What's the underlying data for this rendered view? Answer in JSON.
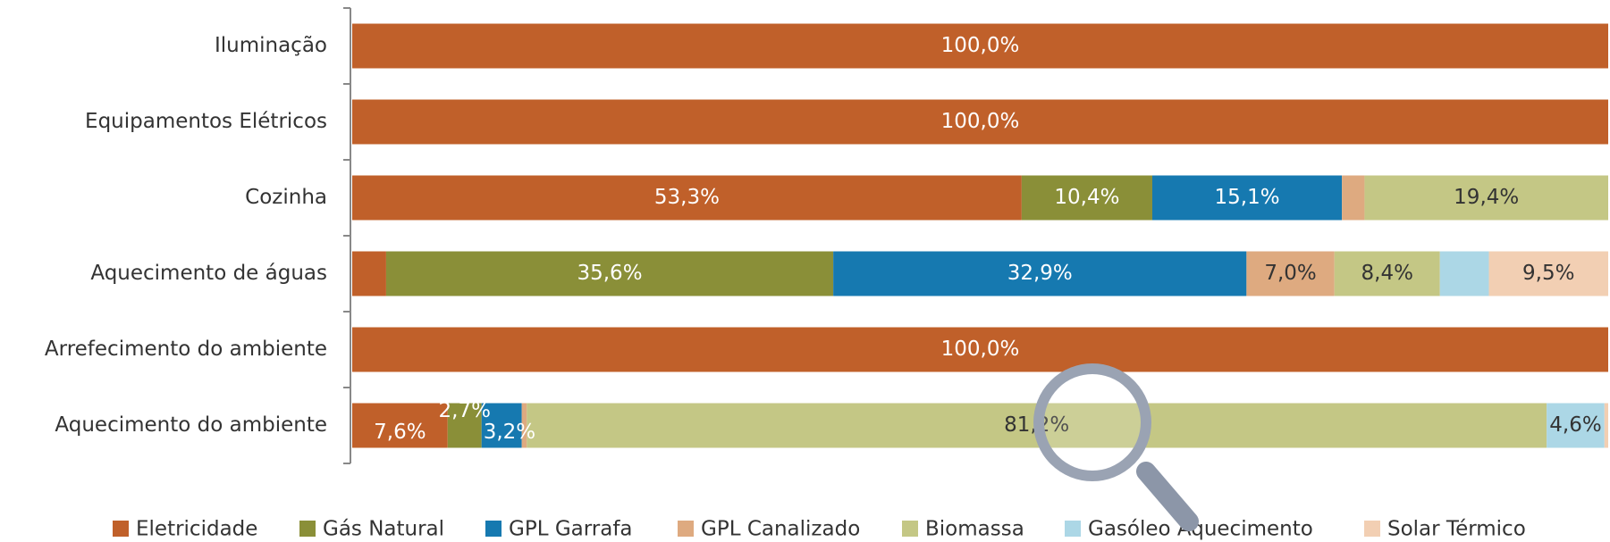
{
  "chart_data": {
    "type": "stacked_bar_horizontal",
    "categories": [
      "Iluminação",
      "Equipamentos Elétricos",
      "Cozinha",
      "Aquecimento de águas",
      "Arrefecimento do ambiente",
      "Aquecimento do ambiente"
    ],
    "xlim": [
      0,
      100
    ],
    "legend": "bottom",
    "series": [
      {
        "name": "Eletricidade",
        "color": "#c0602a",
        "label_color": "#ffffff",
        "values": [
          100,
          100,
          53.3,
          2.7,
          100,
          7.6
        ],
        "value_labels": [
          "100,0%",
          "100,0%",
          "53,3%",
          null,
          "100,0%",
          "7,6%"
        ]
      },
      {
        "name": "Gás Natural",
        "color": "#8a8f38",
        "label_color": "#ffffff",
        "values": [
          0,
          0,
          10.4,
          35.6,
          0,
          2.7
        ],
        "value_labels": [
          null,
          null,
          "10,4%",
          "35,6%",
          null,
          "2,7%"
        ]
      },
      {
        "name": "GPL Garrafa",
        "color": "#1679b0",
        "label_color": "#ffffff",
        "values": [
          0,
          0,
          15.1,
          32.9,
          0,
          3.2
        ],
        "value_labels": [
          null,
          null,
          "15,1%",
          "32,9%",
          null,
          "3,2%"
        ]
      },
      {
        "name": "GPL Canalizado",
        "color": "#deaa80",
        "label_color": "#333333",
        "values": [
          0,
          0,
          1.8,
          7.0,
          0,
          0.4
        ],
        "value_labels": [
          null,
          null,
          null,
          "7,0%",
          null,
          null
        ]
      },
      {
        "name": "Biomassa",
        "color": "#c4c785",
        "label_color": "#333333",
        "values": [
          0,
          0,
          19.4,
          8.4,
          0,
          81.2
        ],
        "value_labels": [
          null,
          null,
          "19,4%",
          "8,4%",
          null,
          "81,2%"
        ]
      },
      {
        "name": "Gasóleo Aquecimento",
        "color": "#acd7e6",
        "label_color": "#333333",
        "values": [
          0,
          0,
          0,
          3.9,
          0,
          4.6
        ],
        "value_labels": [
          null,
          null,
          null,
          null,
          null,
          "4,6%"
        ]
      },
      {
        "name": "Solar Térmico",
        "color": "#f2cfb3",
        "label_color": "#333333",
        "values": [
          0,
          0,
          0,
          9.5,
          0,
          0.3
        ],
        "value_labels": [
          null,
          null,
          null,
          "9,5%",
          null,
          null
        ]
      }
    ]
  }
}
